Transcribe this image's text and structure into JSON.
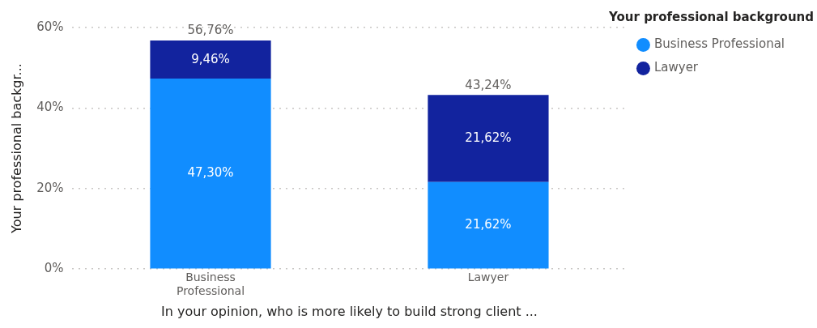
{
  "chart_data": {
    "type": "bar",
    "stacked": true,
    "ylabel": "Your professional backgr...",
    "xlabel": "In your opinion, who is more likely to build strong client ...",
    "legend_title": "Your professional background",
    "legend": "top right",
    "grid": "y",
    "categories": [
      "Business Professional",
      "Lawyer"
    ],
    "ylim": [
      0,
      60
    ],
    "yticks": [
      {
        "value": 0,
        "label": "0%"
      },
      {
        "value": 20,
        "label": "20%"
      },
      {
        "value": 40,
        "label": "40%"
      },
      {
        "value": 60,
        "label": "60%"
      }
    ],
    "series": [
      {
        "name": "Business Professional",
        "color": "#118dff",
        "values": [
          47.3,
          21.62
        ],
        "value_labels": [
          "47,30%",
          "21,62%"
        ]
      },
      {
        "name": "Lawyer",
        "color": "#12239e",
        "values": [
          9.46,
          21.62
        ],
        "value_labels": [
          "9,46%",
          "21,62%"
        ]
      }
    ],
    "totals": [
      "56,76%",
      "43,24%"
    ]
  }
}
